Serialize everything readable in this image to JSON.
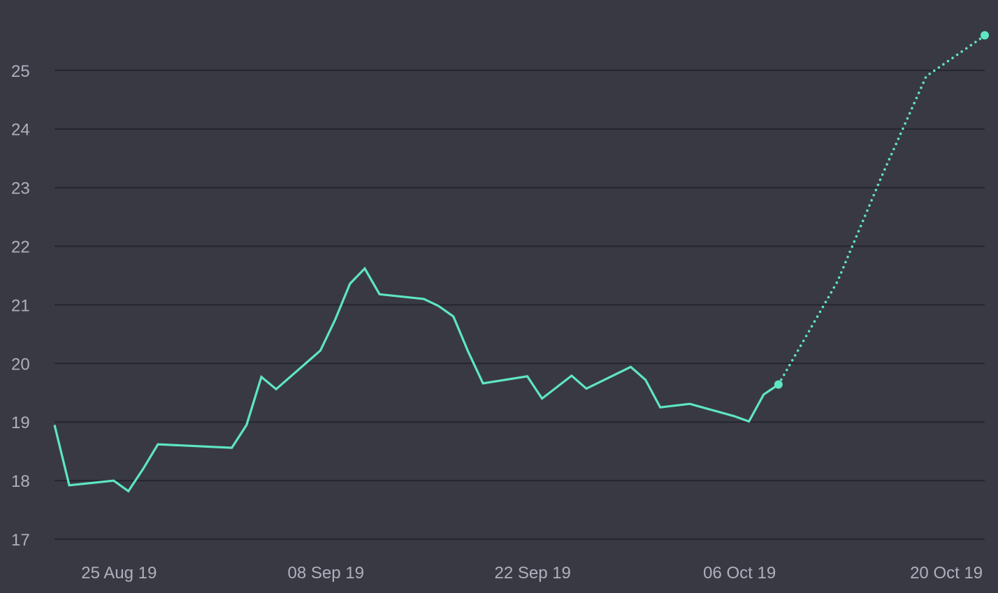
{
  "chart_data": {
    "type": "line",
    "title": "",
    "xlabel": "",
    "ylabel": "",
    "ylim": [
      17,
      25.85
    ],
    "xlim": [
      "2019-08-23",
      "2019-10-23"
    ],
    "yticks": [
      17,
      18,
      19,
      20,
      21,
      22,
      23,
      24,
      25
    ],
    "xticks": [
      {
        "date": "2019-08-25",
        "label": "25 Aug 19"
      },
      {
        "date": "2019-09-08",
        "label": "08 Sep 19"
      },
      {
        "date": "2019-09-22",
        "label": "22 Sep 19"
      },
      {
        "date": "2019-10-06",
        "label": "06 Oct 19"
      },
      {
        "date": "2019-10-20",
        "label": "20 Oct 19"
      }
    ],
    "grid": true,
    "legend": "none",
    "colors": {
      "background": "#393944",
      "grid": "#25252c",
      "line": "#5ee6c2",
      "tick_text": "#aeb0bc"
    },
    "series": [
      {
        "style": "solid",
        "points": [
          {
            "x": "2019-08-23",
            "y": 18.95
          },
          {
            "x": "2019-08-24",
            "y": 17.92
          },
          {
            "x": "2019-08-27",
            "y": 18.0
          },
          {
            "x": "2019-08-28",
            "y": 17.82
          },
          {
            "x": "2019-08-29",
            "y": 18.2
          },
          {
            "x": "2019-08-30",
            "y": 18.62
          },
          {
            "x": "2019-09-04",
            "y": 18.56
          },
          {
            "x": "2019-09-05",
            "y": 18.95
          },
          {
            "x": "2019-09-06",
            "y": 19.77
          },
          {
            "x": "2019-09-07",
            "y": 19.56
          },
          {
            "x": "2019-09-10",
            "y": 20.22
          },
          {
            "x": "2019-09-11",
            "y": 20.75
          },
          {
            "x": "2019-09-12",
            "y": 21.36
          },
          {
            "x": "2019-09-13",
            "y": 21.62
          },
          {
            "x": "2019-09-14",
            "y": 21.18
          },
          {
            "x": "2019-09-17",
            "y": 21.1
          },
          {
            "x": "2019-09-18",
            "y": 20.98
          },
          {
            "x": "2019-09-19",
            "y": 20.8
          },
          {
            "x": "2019-09-20",
            "y": 20.2
          },
          {
            "x": "2019-09-21",
            "y": 19.66
          },
          {
            "x": "2019-09-24",
            "y": 19.78
          },
          {
            "x": "2019-09-25",
            "y": 19.4
          },
          {
            "x": "2019-09-27",
            "y": 19.79
          },
          {
            "x": "2019-09-28",
            "y": 19.57
          },
          {
            "x": "2019-10-01",
            "y": 19.94
          },
          {
            "x": "2019-10-02",
            "y": 19.72
          },
          {
            "x": "2019-10-03",
            "y": 19.25
          },
          {
            "x": "2019-10-05",
            "y": 19.31
          },
          {
            "x": "2019-10-08",
            "y": 19.1
          },
          {
            "x": "2019-10-09",
            "y": 19.01
          },
          {
            "x": "2019-10-10",
            "y": 19.47
          },
          {
            "x": "2019-10-11",
            "y": 19.64
          }
        ]
      },
      {
        "style": "dotted",
        "points": [
          {
            "x": "2019-10-11",
            "y": 19.64
          },
          {
            "x": "2019-10-15",
            "y": 21.4
          },
          {
            "x": "2019-10-18",
            "y": 23.2
          },
          {
            "x": "2019-10-21",
            "y": 24.9
          },
          {
            "x": "2019-10-25",
            "y": 25.6
          }
        ]
      }
    ]
  }
}
